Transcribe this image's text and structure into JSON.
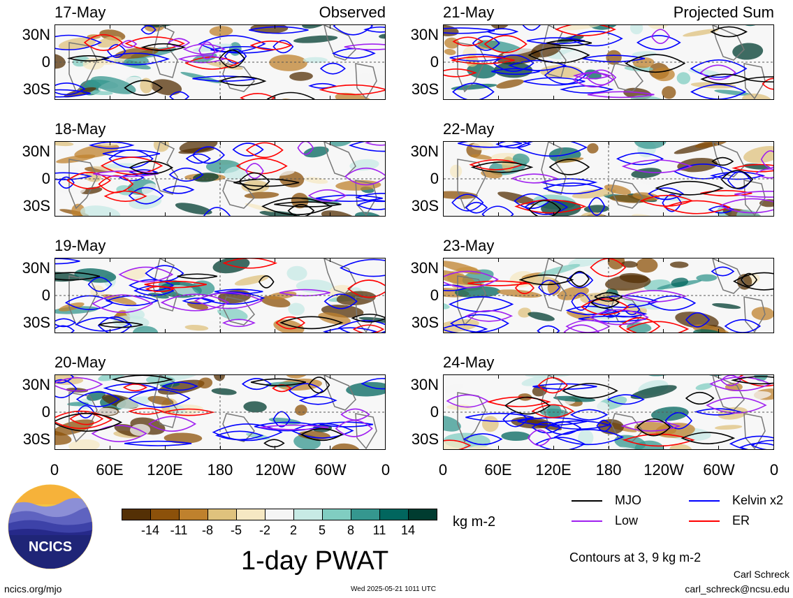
{
  "panels": {
    "left": [
      {
        "date": "17-May",
        "heading": "Observed"
      },
      {
        "date": "18-May"
      },
      {
        "date": "19-May"
      },
      {
        "date": "20-May"
      }
    ],
    "right": [
      {
        "date": "21-May",
        "heading": "Projected Sum"
      },
      {
        "date": "22-May"
      },
      {
        "date": "23-May"
      },
      {
        "date": "24-May"
      }
    ]
  },
  "axes": {
    "lat_labels": [
      "30N",
      "0",
      "30S"
    ],
    "lon_labels": [
      "0",
      "60E",
      "120E",
      "180",
      "120W",
      "60W",
      "0"
    ]
  },
  "colorbar": {
    "tick_labels": [
      "-14",
      "-11",
      "-8",
      "-5",
      "-2",
      "2",
      "5",
      "8",
      "11",
      "14"
    ],
    "colors": [
      "#543005",
      "#8c510a",
      "#bf812d",
      "#dfc27d",
      "#f6e8c3",
      "#f5f5f5",
      "#c7eae5",
      "#80cdc1",
      "#35978f",
      "#01665e",
      "#003c30"
    ],
    "units": "kg m-2"
  },
  "plot_title": "1-day PWAT",
  "legend": {
    "items": [
      {
        "label": "MJO",
        "color": "#000000"
      },
      {
        "label": "Kelvin x2",
        "color": "#0000ff"
      },
      {
        "label": "Low",
        "color": "#a020f0"
      },
      {
        "label": "ER",
        "color": "#ff0000"
      }
    ],
    "contours_note": "Contours at 3, 9 kg m-2"
  },
  "logo": {
    "text": "NCICS"
  },
  "footer": {
    "url": "ncics.org/mjo",
    "timestamp": "Wed 2025-05-21 1011 UTC",
    "author": "Carl Schreck",
    "email": "carl_schreck@ncsu.edu"
  }
}
